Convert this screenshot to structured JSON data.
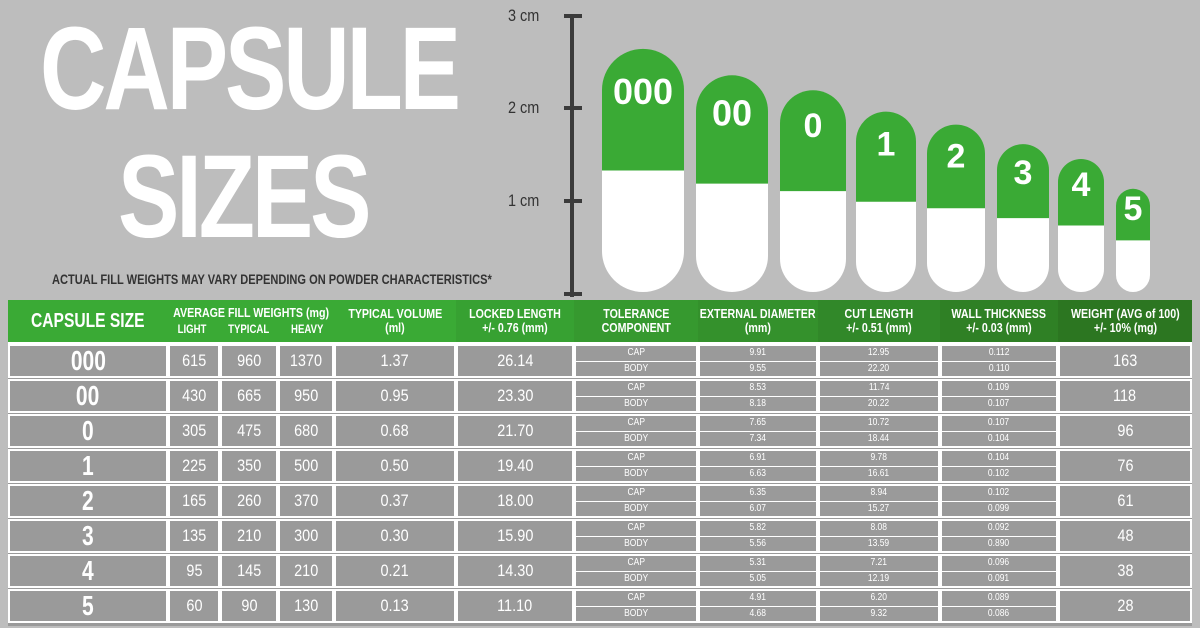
{
  "title_line1": "CAPSULE",
  "title_line2": "SIZES",
  "subtitle": "ACTUAL FILL WEIGHTS MAY VARY DEPENDING ON POWDER CHARACTERISTICS*",
  "scale_labels": [
    "3 cm",
    "2 cm",
    "1 cm"
  ],
  "colors": {
    "green": "#3aaa35",
    "dark_green": "#2e7d1f",
    "gray": "#9a9a9a",
    "background": "#bdbdbd"
  },
  "table": {
    "headers": {
      "size": "CAPSULE SIZE",
      "fill": "AVERAGE FILL WEIGHTS (mg)",
      "light": "LIGHT",
      "typical": "TYPICAL",
      "heavy": "HEAVY",
      "volume_1": "TYPICAL VOLUME",
      "volume_2": "(ml)",
      "locked_1": "LOCKED LENGTH",
      "locked_2": "+/- 0.76 (mm)",
      "tol_1": "TOLERANCE",
      "tol_2": "COMPONENT",
      "ext_1": "EXTERNAL DIAMETER",
      "ext_2": "(mm)",
      "cut_1": "CUT LENGTH",
      "cut_2": "+/- 0.51 (mm)",
      "wall_1": "WALL THICKNESS",
      "wall_2": "+/- 0.03 (mm)",
      "weight_1": "WEIGHT (AVG of 100)",
      "weight_2": "+/- 10% (mg)"
    },
    "cap_label": "CAP",
    "body_label": "BODY"
  },
  "chart_data": {
    "type": "table",
    "rows": [
      {
        "size": "000",
        "light": "615",
        "typical": "960",
        "heavy": "1370",
        "volume": "1.37",
        "locked": "26.14",
        "ext_cap": "9.91",
        "ext_body": "9.55",
        "cut_cap": "12.95",
        "cut_body": "22.20",
        "wall_cap": "0.112",
        "wall_body": "0.110",
        "weight": "163",
        "cap_h": 1.3,
        "body_h": 1.2
      },
      {
        "size": "00",
        "light": "430",
        "typical": "665",
        "heavy": "950",
        "volume": "0.95",
        "locked": "23.30",
        "ext_cap": "8.53",
        "ext_body": "8.18",
        "cut_cap": "11.74",
        "cut_body": "20.22",
        "wall_cap": "0.109",
        "wall_body": "0.107",
        "weight": "118",
        "cap_h": 1.2,
        "body_h": 1.07
      },
      {
        "size": "0",
        "light": "305",
        "typical": "475",
        "heavy": "680",
        "volume": "0.68",
        "locked": "21.70",
        "ext_cap": "7.65",
        "ext_body": "7.34",
        "cut_cap": "10.72",
        "cut_body": "18.44",
        "wall_cap": "0.107",
        "wall_body": "0.104",
        "weight": "96",
        "cap_h": 1.1,
        "body_h": 1.0
      },
      {
        "size": "1",
        "light": "225",
        "typical": "350",
        "heavy": "500",
        "volume": "0.50",
        "locked": "19.40",
        "ext_cap": "6.91",
        "ext_body": "6.63",
        "cut_cap": "9.78",
        "cut_body": "16.61",
        "wall_cap": "0.104",
        "wall_body": "0.102",
        "weight": "76",
        "cap_h": 1.0,
        "body_h": 0.9
      },
      {
        "size": "2",
        "light": "165",
        "typical": "260",
        "heavy": "370",
        "volume": "0.37",
        "locked": "18.00",
        "ext_cap": "6.35",
        "ext_body": "6.07",
        "cut_cap": "8.94",
        "cut_body": "15.27",
        "wall_cap": "0.102",
        "wall_body": "0.099",
        "weight": "61",
        "cap_h": 0.92,
        "body_h": 0.82
      },
      {
        "size": "3",
        "light": "135",
        "typical": "210",
        "heavy": "300",
        "volume": "0.30",
        "locked": "15.90",
        "ext_cap": "5.82",
        "ext_body": "5.56",
        "cut_cap": "8.08",
        "cut_body": "13.59",
        "wall_cap": "0.092",
        "wall_body": "0.890",
        "weight": "48",
        "cap_h": 0.82,
        "body_h": 0.75
      },
      {
        "size": "4",
        "light": "95",
        "typical": "145",
        "heavy": "210",
        "volume": "0.21",
        "locked": "14.30",
        "ext_cap": "5.31",
        "ext_body": "5.05",
        "cut_cap": "7.21",
        "cut_body": "12.19",
        "wall_cap": "0.096",
        "wall_body": "0.091",
        "weight": "38",
        "cap_h": 0.72,
        "body_h": 0.7
      },
      {
        "size": "5",
        "light": "60",
        "typical": "90",
        "heavy": "130",
        "volume": "0.13",
        "locked": "11.10",
        "ext_cap": "4.91",
        "ext_body": "4.68",
        "cut_cap": "6.20",
        "cut_body": "9.32",
        "wall_cap": "0.089",
        "wall_body": "0.086",
        "weight": "28",
        "cap_h": 0.55,
        "body_h": 0.5
      }
    ]
  }
}
